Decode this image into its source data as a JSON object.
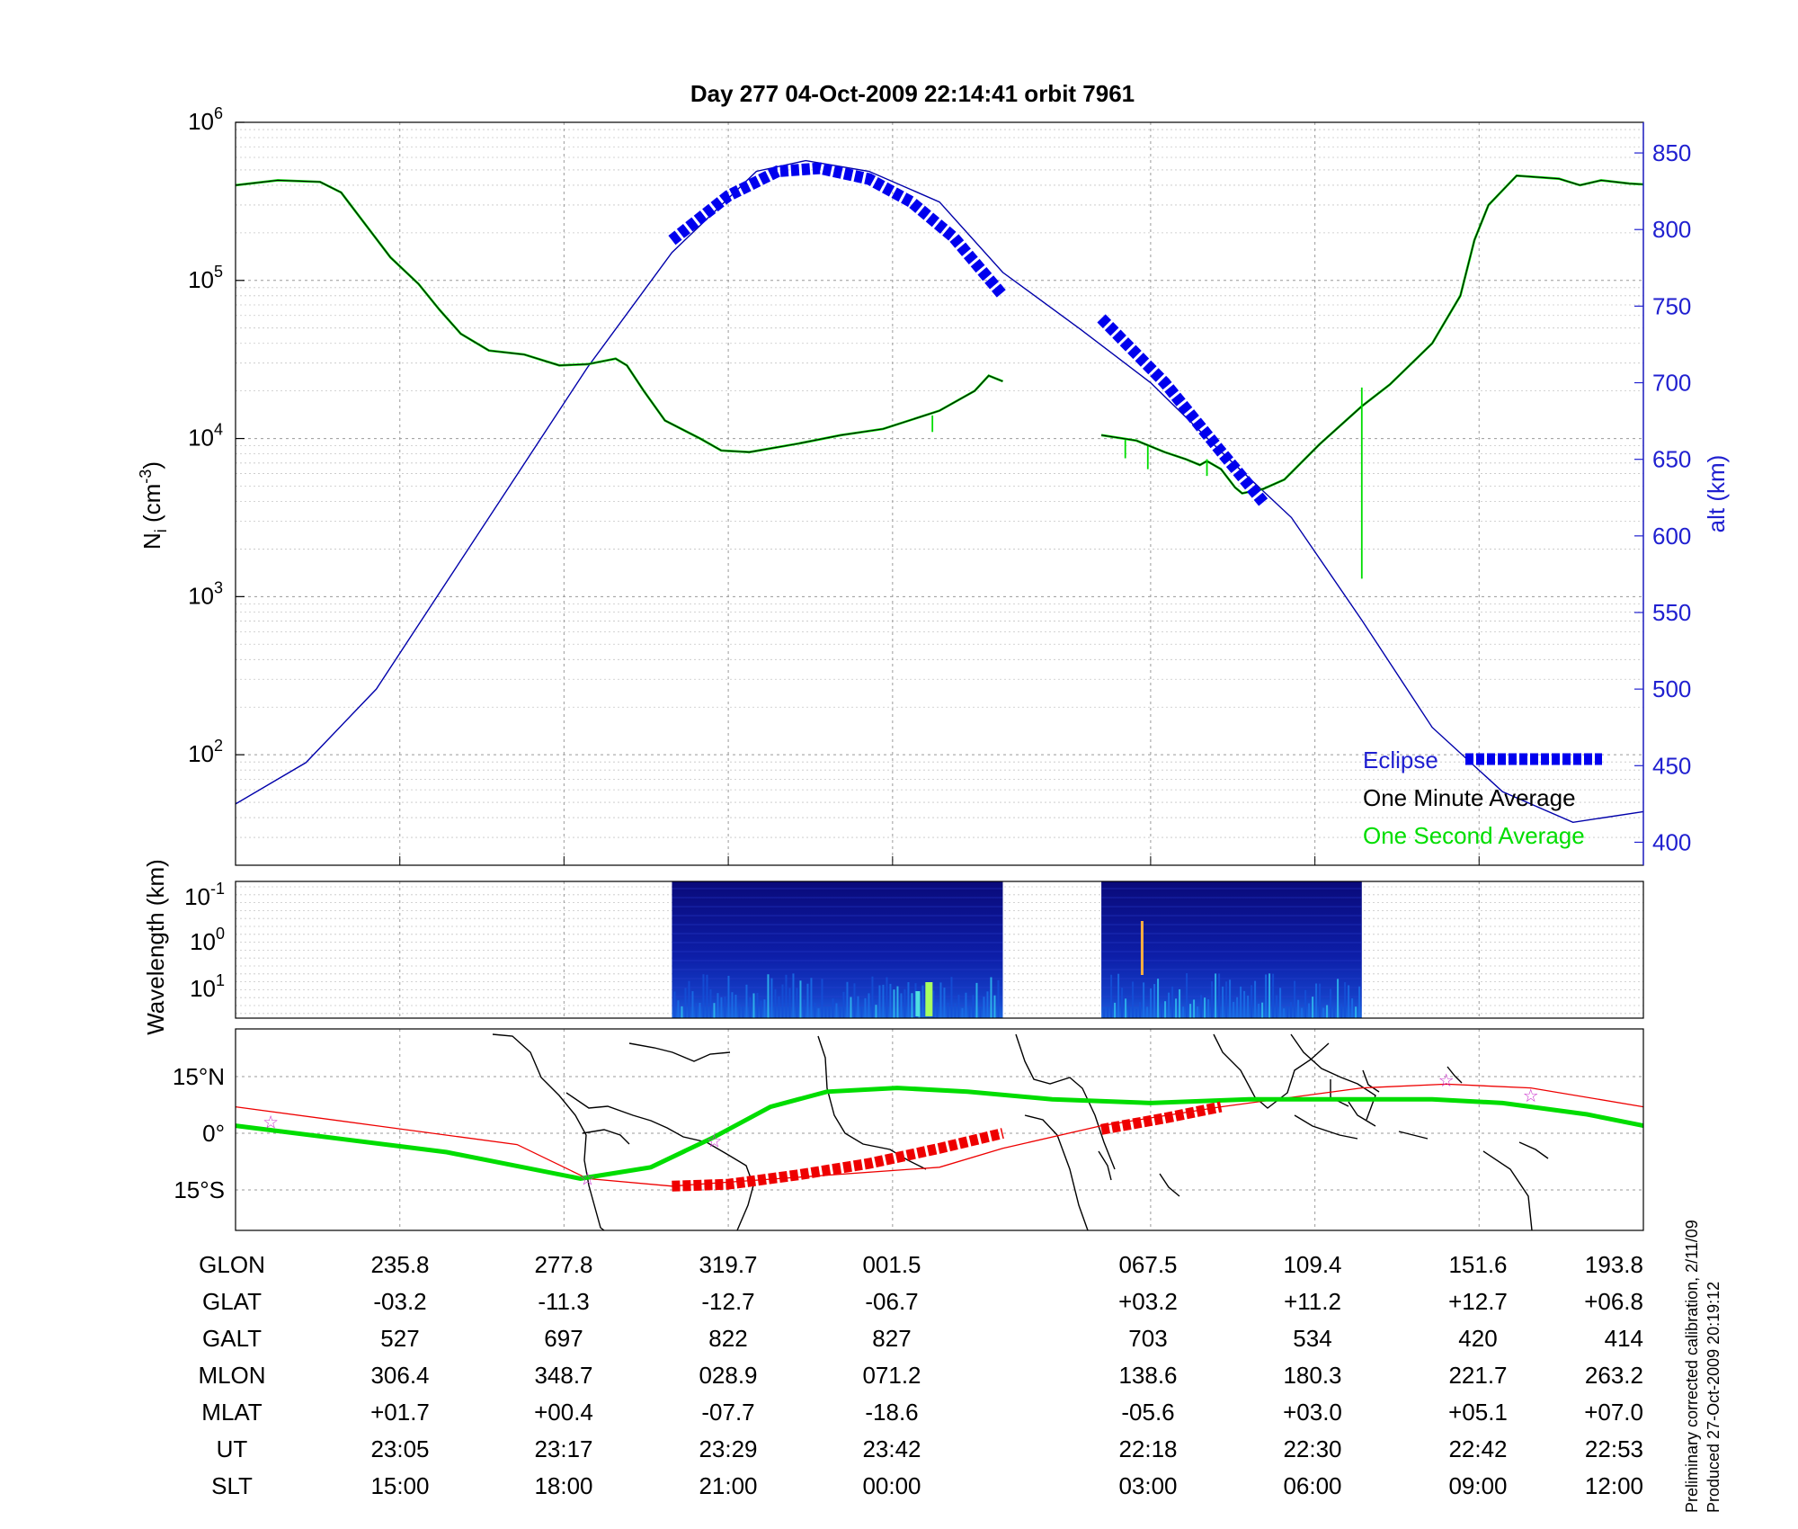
{
  "title": "Day 277  04-Oct-2009 22:14:41   orbit 7961",
  "side_note_1": "Preliminary corrected calibration, 2/11/09",
  "side_note_2": "Produced 27-Oct-2009 20:19:12",
  "colors": {
    "eclipse": "#0000ee",
    "one_minute": "#000000",
    "one_second": "#00dd00",
    "altitude": "#0000aa",
    "track_red": "#ee0000",
    "track_green": "#00dd00",
    "stars": "#cc33cc"
  },
  "chart_data": [
    {
      "type": "line",
      "panel": "ion density and altitude",
      "ylabel_main": "N",
      "ylabel_sub": "i",
      "ylabel_unit": " (cm",
      "ylabel_exp": "-3",
      "ylabel_close": ")",
      "y_scale": "log",
      "ylim": [
        20,
        1000000
      ],
      "y_ticks": [
        {
          "base": "10",
          "exp": "2",
          "value": 100
        },
        {
          "base": "10",
          "exp": "3",
          "value": 1000
        },
        {
          "base": "10",
          "exp": "4",
          "value": 10000
        },
        {
          "base": "10",
          "exp": "5",
          "value": 100000
        },
        {
          "base": "10",
          "exp": "6",
          "value": 1000000
        }
      ],
      "y2label": "alt (km)",
      "y2lim": [
        385,
        870
      ],
      "y2_ticks": [
        "400",
        "450",
        "500",
        "550",
        "600",
        "650",
        "700",
        "750",
        "800",
        "850"
      ],
      "x_fraction_range": [
        0,
        1
      ],
      "legend": {
        "placement": "bottom-right",
        "eclipse": "Eclipse",
        "one_minute": "One Minute Average",
        "one_second": "One Second Average"
      },
      "series": [
        {
          "name": "One Minute Average",
          "segments": [
            [
              [
                0,
                400000
              ],
              [
                0.03,
                430000
              ],
              [
                0.06,
                420000
              ],
              [
                0.075,
                360000
              ],
              [
                0.09,
                240000
              ],
              [
                0.11,
                140000
              ],
              [
                0.13,
                95000
              ],
              [
                0.145,
                65000
              ],
              [
                0.16,
                46000
              ],
              [
                0.18,
                36000
              ],
              [
                0.205,
                34000
              ],
              [
                0.23,
                29000
              ],
              [
                0.25,
                29500
              ],
              [
                0.27,
                32000
              ],
              [
                0.278,
                29000
              ],
              [
                0.29,
                20000
              ],
              [
                0.305,
                13000
              ],
              [
                0.33,
                10000
              ],
              [
                0.345,
                8400
              ],
              [
                0.365,
                8200
              ],
              [
                0.4,
                9300
              ],
              [
                0.43,
                10500
              ],
              [
                0.46,
                11500
              ],
              [
                0.5,
                15000
              ],
              [
                0.525,
                20000
              ],
              [
                0.535,
                25000
              ],
              [
                0.545,
                23000
              ]
            ],
            [
              [
                0.615,
                10500
              ],
              [
                0.64,
                9700
              ],
              [
                0.66,
                8200
              ],
              [
                0.675,
                7400
              ],
              [
                0.685,
                6800
              ],
              [
                0.69,
                7200
              ],
              [
                0.7,
                6400
              ],
              [
                0.71,
                4900
              ],
              [
                0.715,
                4500
              ],
              [
                0.73,
                4800
              ],
              [
                0.745,
                5500
              ],
              [
                0.77,
                9200
              ],
              [
                0.8,
                16000
              ],
              [
                0.82,
                22000
              ],
              [
                0.85,
                40000
              ],
              [
                0.87,
                80000
              ],
              [
                0.88,
                180000
              ],
              [
                0.89,
                300000
              ],
              [
                0.91,
                460000
              ],
              [
                0.94,
                440000
              ],
              [
                0.955,
                400000
              ],
              [
                0.97,
                430000
              ],
              [
                0.99,
                410000
              ],
              [
                1,
                405000
              ]
            ]
          ]
        },
        {
          "name": "One Second Average",
          "spikes": [
            {
              "x": 0.495,
              "from": 14000,
              "to": 11000
            },
            {
              "x": 0.632,
              "from": 9800,
              "to": 7500
            },
            {
              "x": 0.648,
              "from": 9000,
              "to": 6400
            },
            {
              "x": 0.69,
              "from": 7400,
              "to": 5800
            },
            {
              "x": 0.8,
              "from": 21000,
              "to": 1300
            }
          ]
        },
        {
          "name": "altitude",
          "axis": "alt (km)",
          "points": [
            [
              0,
              425
            ],
            [
              0.05,
              452
            ],
            [
              0.1,
              500
            ],
            [
              0.15,
              570
            ],
            [
              0.2,
              640
            ],
            [
              0.25,
              710
            ],
            [
              0.31,
              785
            ],
            [
              0.37,
              838
            ],
            [
              0.405,
              845
            ],
            [
              0.45,
              838
            ],
            [
              0.5,
              818
            ],
            [
              0.545,
              772
            ],
            [
              0.6,
              735
            ],
            [
              0.65,
              700
            ],
            [
              0.7,
              655
            ],
            [
              0.75,
              612
            ],
            [
              0.8,
              545
            ],
            [
              0.85,
              475
            ],
            [
              0.9,
              433
            ],
            [
              0.95,
              413
            ],
            [
              1,
              420
            ]
          ]
        },
        {
          "name": "Eclipse",
          "axis": "alt (km)",
          "segments": [
            [
              [
                0.31,
                793
              ],
              [
                0.35,
                822
              ],
              [
                0.385,
                838
              ],
              [
                0.415,
                840
              ],
              [
                0.45,
                833
              ],
              [
                0.48,
                818
              ],
              [
                0.51,
                795
              ],
              [
                0.545,
                757
              ]
            ],
            [
              [
                0.615,
                742
              ],
              [
                0.66,
                700
              ],
              [
                0.7,
                655
              ],
              [
                0.73,
                622
              ]
            ]
          ]
        }
      ]
    },
    {
      "type": "heatmap",
      "panel": "wavelength spectrogram",
      "ylabel": "Wavelength (km)",
      "y_ticks": [
        {
          "base": "10",
          "exp": "-1"
        },
        {
          "base": "10",
          "exp": "0"
        },
        {
          "base": "10",
          "exp": "1"
        }
      ],
      "data_intervals": [
        [
          0.31,
          0.545
        ],
        [
          0.615,
          0.8
        ]
      ]
    },
    {
      "type": "map",
      "panel": "ground track",
      "y_ticks": [
        "15°N",
        "0°",
        "15°S"
      ],
      "red_thin_track": [
        [
          0,
          7
        ],
        [
          0.1,
          2
        ],
        [
          0.2,
          -3
        ],
        [
          0.25,
          -12
        ],
        [
          0.31,
          -14
        ],
        [
          0.5,
          -9
        ],
        [
          0.545,
          -4
        ],
        [
          0.615,
          2
        ],
        [
          0.7,
          7
        ],
        [
          0.8,
          12
        ],
        [
          0.86,
          13
        ],
        [
          0.92,
          12
        ],
        [
          1,
          7
        ]
      ],
      "green_track": [
        [
          0,
          2
        ],
        [
          0.15,
          -5
        ],
        [
          0.245,
          -12
        ],
        [
          0.295,
          -9
        ],
        [
          0.34,
          -1
        ],
        [
          0.38,
          7
        ],
        [
          0.42,
          11
        ],
        [
          0.47,
          12
        ],
        [
          0.52,
          11
        ],
        [
          0.58,
          9
        ],
        [
          0.65,
          8
        ],
        [
          0.72,
          9
        ],
        [
          0.78,
          9
        ],
        [
          0.85,
          9
        ],
        [
          0.9,
          8
        ],
        [
          0.96,
          5
        ],
        [
          1,
          2
        ]
      ],
      "eclipse_track": [
        [
          [
            0.31,
            -14
          ],
          [
            0.35,
            -13.5
          ],
          [
            0.4,
            -11
          ],
          [
            0.45,
            -8
          ],
          [
            0.5,
            -4
          ],
          [
            0.545,
            0
          ]
        ],
        [
          [
            0.615,
            1
          ],
          [
            0.66,
            4
          ],
          [
            0.7,
            7
          ]
        ]
      ],
      "stars": [
        [
          0.025,
          3
        ],
        [
          0.25,
          -12
        ],
        [
          0.34,
          -2
        ],
        [
          0.86,
          14
        ],
        [
          0.92,
          10
        ]
      ]
    }
  ],
  "table": {
    "rows": [
      {
        "label": "GLON",
        "values": [
          "235.8",
          "277.8",
          "319.7",
          "001.5",
          "067.5",
          "109.4",
          "151.6",
          "193.8"
        ]
      },
      {
        "label": "GLAT",
        "values": [
          "-03.2",
          "-11.3",
          "-12.7",
          "-06.7",
          "+03.2",
          "+11.2",
          "+12.7",
          "+06.8"
        ]
      },
      {
        "label": "GALT",
        "values": [
          "527",
          "697",
          "822",
          "827",
          "703",
          "534",
          "420",
          "414"
        ]
      },
      {
        "label": "MLON",
        "values": [
          "306.4",
          "348.7",
          "028.9",
          "071.2",
          "138.6",
          "180.3",
          "221.7",
          "263.2"
        ]
      },
      {
        "label": "MLAT",
        "values": [
          "+01.7",
          "+00.4",
          "-07.7",
          "-18.6",
          "-05.6",
          "+03.0",
          "+05.1",
          "+07.0"
        ]
      },
      {
        "label": "UT",
        "values": [
          "23:05",
          "23:17",
          "23:29",
          "23:42",
          "22:18",
          "22:30",
          "22:42",
          "22:53"
        ]
      },
      {
        "label": "SLT",
        "values": [
          "15:00",
          "18:00",
          "21:00",
          "00:00",
          "03:00",
          "06:00",
          "09:00",
          "12:00"
        ]
      }
    ]
  }
}
